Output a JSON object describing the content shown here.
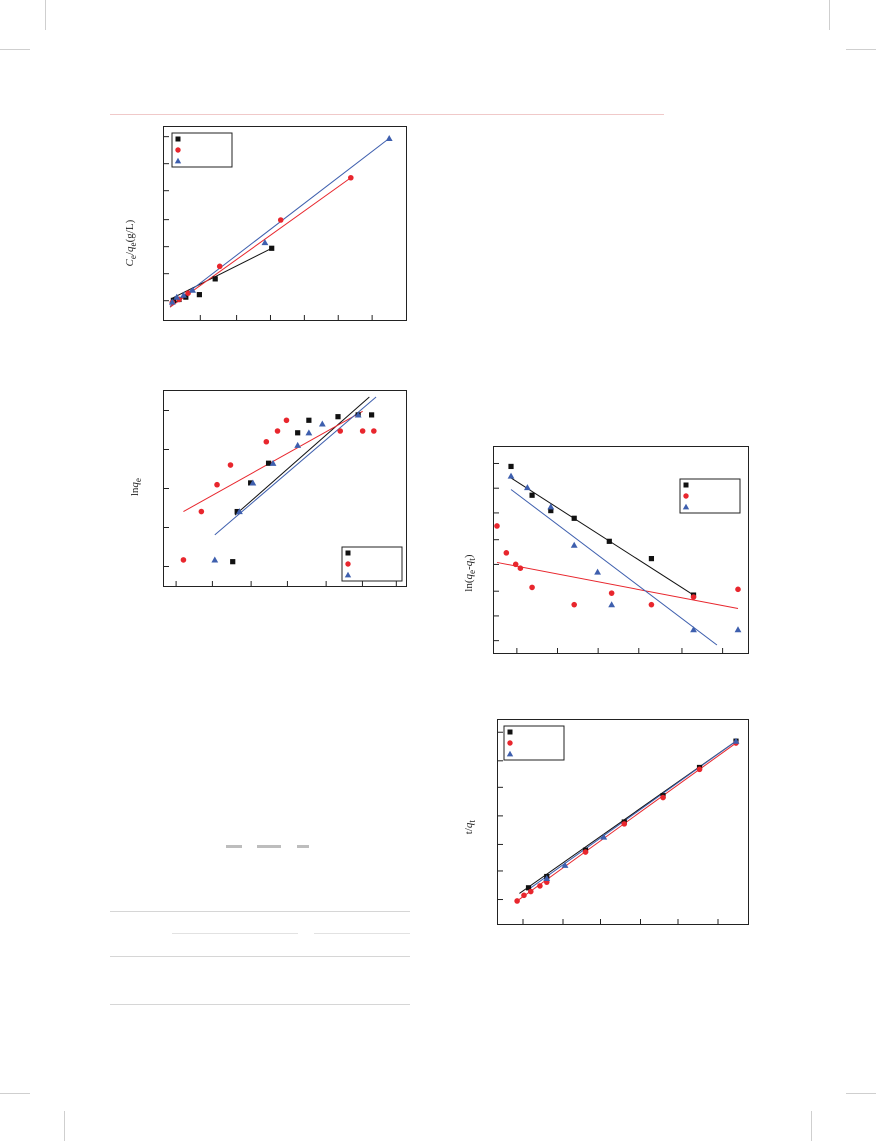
{
  "colors": {
    "s1": "#111111",
    "s2": "#e8262d",
    "s3": "#3e5fae"
  },
  "chart_data": [
    {
      "type": "scatter",
      "ylabel": "C_e/q_e (g/L)",
      "xlim": [
        0,
        100
      ],
      "ylim": [
        0,
        100
      ],
      "series": [
        {
          "color": "#111111",
          "marker": "square",
          "x": [
            1.5,
            4,
            7,
            13,
            20,
            45
          ],
          "y": [
            6.5,
            7,
            8.3,
            9.7,
            18.5,
            35.6
          ],
          "fit": [
            [
              1,
              7.7
            ],
            [
              45,
              35.6
            ]
          ]
        },
        {
          "color": "#e8262d",
          "marker": "circle",
          "x": [
            1,
            4,
            8,
            22,
            49,
            80
          ],
          "y": [
            5.3,
            7,
            10.5,
            25.5,
            51.4,
            75
          ],
          "fit": [
            [
              0,
              2.7
            ],
            [
              80,
              75
            ]
          ]
        },
        {
          "color": "#3e5fae",
          "marker": "triangle",
          "x": [
            1,
            3,
            6,
            10,
            42,
            97
          ],
          "y": [
            5.6,
            8.3,
            9.4,
            12.2,
            38.8,
            97
          ],
          "fit": [
            [
              0,
              3.2
            ],
            [
              97,
              97
            ]
          ]
        }
      ]
    },
    {
      "type": "scatter",
      "ylabel": "ln q_e",
      "xlim": [
        0,
        100
      ],
      "ylim": [
        0,
        100
      ],
      "series": [
        {
          "color": "#111111",
          "marker": "square",
          "x": [
            28,
            30,
            36,
            44,
            57,
            62,
            75,
            84,
            90
          ],
          "y": [
            8,
            36,
            52,
            63,
            80,
            87,
            89,
            90,
            90
          ],
          "fit": [
            [
              29,
              34
            ],
            [
              89,
              100
            ]
          ]
        },
        {
          "color": "#e8262d",
          "marker": "circle",
          "x": [
            6,
            14,
            21,
            27,
            43,
            48,
            52,
            76,
            86,
            91
          ],
          "y": [
            9,
            36,
            51,
            62,
            75,
            81,
            87,
            81,
            81,
            81
          ],
          "fit": [
            [
              6,
              36
            ],
            [
              86,
              92
            ]
          ]
        },
        {
          "color": "#3e5fae",
          "marker": "triangle",
          "x": [
            20,
            31,
            37,
            46,
            57,
            62,
            68,
            84
          ],
          "y": [
            9,
            36,
            52,
            63,
            73,
            80,
            85,
            90
          ],
          "fit": [
            [
              20,
              23
            ],
            [
              92,
              100
            ]
          ]
        }
      ]
    },
    {
      "type": "scatter",
      "ylabel": "ln(q_e-q_t)",
      "xlim": [
        0,
        100
      ],
      "ylim": [
        0,
        100
      ],
      "series": [
        {
          "color": "#111111",
          "marker": "square",
          "x": [
            3,
            12,
            20,
            30,
            45,
            63,
            81
          ],
          "y": [
            93,
            78,
            70,
            66,
            54,
            45,
            26
          ],
          "fit": [
            [
              3,
              87
            ],
            [
              81,
              26
            ]
          ]
        },
        {
          "color": "#e8262d",
          "marker": "circle",
          "x": [
            -3,
            1,
            5,
            7,
            12,
            30,
            46,
            63,
            81,
            100
          ],
          "y": [
            62,
            48,
            42,
            40,
            30,
            21,
            27,
            21,
            25,
            29
          ],
          "fit": [
            [
              -3,
              43
            ],
            [
              100,
              19
            ]
          ]
        },
        {
          "color": "#3e5fae",
          "marker": "triangle",
          "x": [
            3,
            10,
            20,
            30,
            40,
            46,
            81,
            100
          ],
          "y": [
            88,
            82,
            72,
            52,
            38,
            21,
            8,
            8
          ],
          "fit": [
            [
              3,
              81
            ],
            [
              91,
              0
            ]
          ]
        }
      ]
    },
    {
      "type": "scatter",
      "ylabel": "t/q_t",
      "xlim": [
        0,
        100
      ],
      "ylim": [
        0,
        100
      ],
      "series": [
        {
          "color": "#111111",
          "marker": "square",
          "x": [
            9,
            17,
            34,
            51,
            68,
            84,
            100
          ],
          "y": [
            15,
            21,
            35,
            50,
            64,
            79,
            93
          ],
          "fit": [
            [
              5,
              12
            ],
            [
              100,
              93
            ]
          ]
        },
        {
          "color": "#e8262d",
          "marker": "circle",
          "x": [
            4,
            7,
            10,
            14,
            17,
            34,
            51,
            68,
            84,
            100
          ],
          "y": [
            8,
            11,
            13,
            16,
            18,
            34,
            49,
            63,
            78,
            92
          ],
          "fit": [
            [
              4,
              8
            ],
            [
              100,
              92
            ]
          ]
        },
        {
          "color": "#3e5fae",
          "marker": "triangle",
          "x": [
            17,
            25,
            42,
            100
          ],
          "y": [
            20,
            27,
            42,
            93
          ],
          "fit": [
            [
              10,
              15
            ],
            [
              100,
              93
            ]
          ]
        }
      ]
    }
  ]
}
